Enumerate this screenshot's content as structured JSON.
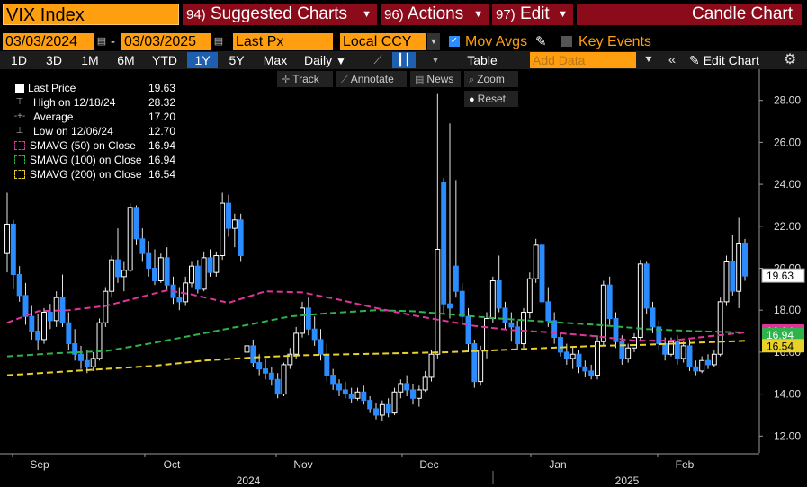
{
  "header": {
    "ticker": "VIX Index",
    "suggested": {
      "num": "94)",
      "label": "Suggested Charts"
    },
    "actions": {
      "num": "96)",
      "label": "Actions"
    },
    "edit": {
      "num": "97)",
      "label": "Edit"
    },
    "chart_type": "Candle Chart"
  },
  "controls": {
    "date_from": "03/03/2024",
    "date_sep": "-",
    "date_to": "03/03/2025",
    "price_field": "Last Px",
    "currency": "Local CCY",
    "mov_avgs_label": "Mov Avgs",
    "key_events_label": "Key Events"
  },
  "periods": [
    "1D",
    "3D",
    "1M",
    "6M",
    "YTD",
    "1Y",
    "5Y",
    "Max"
  ],
  "selected_period": "1Y",
  "frequency": "Daily",
  "table_label": "Table",
  "add_data_placeholder": "Add Data",
  "edit_chart_label": "Edit Chart",
  "chart_tools": {
    "track": "Track",
    "annotate": "Annotate",
    "news": "News",
    "zoom": "Zoom",
    "reset": "Reset"
  },
  "legend": [
    {
      "label": "Last Price",
      "value": "19.63",
      "color": "#ffffff",
      "symbol": "square"
    },
    {
      "label": "High on 12/18/24",
      "value": "28.32",
      "color": "#aaaaaa",
      "symbol": "high"
    },
    {
      "label": "Average",
      "value": "17.20",
      "color": "#aaaaaa",
      "symbol": "avg"
    },
    {
      "label": "Low on 12/06/24",
      "value": "12.70",
      "color": "#aaaaaa",
      "symbol": "low"
    },
    {
      "label": "SMAVG (50)  on Close",
      "value": "16.94",
      "color": "#e0349a",
      "symbol": "dash"
    },
    {
      "label": "SMAVG (100)  on Close",
      "value": "16.94",
      "color": "#2db34a",
      "symbol": "dash"
    },
    {
      "label": "SMAVG (200)  on Close",
      "value": "16.54",
      "color": "#e8d22a",
      "symbol": "dash"
    }
  ],
  "chart_data": {
    "type": "candlestick",
    "y_ticks": [
      "12.00",
      "14.00",
      "16.00",
      "18.00",
      "20.00",
      "22.00",
      "24.00",
      "26.00",
      "28.00"
    ],
    "ylim": [
      11.2,
      29.4
    ],
    "month_labels": [
      "Sep",
      "Oct",
      "Nov",
      "Dec",
      "Jan",
      "Feb"
    ],
    "year_labels": [
      "2024",
      "2025"
    ],
    "price_tags": [
      {
        "value": "19.63",
        "y": 19.63,
        "bg": "#ffffff",
        "fg": "#000000"
      },
      {
        "value": "16.94",
        "y": 16.94,
        "bg": "#e0349a",
        "fg": "#ffffff"
      },
      {
        "value": "16.94",
        "y": 16.94,
        "bg": "#2db34a",
        "fg": "#ffffff"
      },
      {
        "value": "16.54",
        "y": 16.54,
        "bg": "#e8d22a",
        "fg": "#000000"
      }
    ],
    "up_color": "#ffffff",
    "down_color": "#2b8cff",
    "candles": [
      [
        20.7,
        23.6,
        19.8,
        22.1
      ],
      [
        22.1,
        22.3,
        19.0,
        19.7
      ],
      [
        19.7,
        20.1,
        18.4,
        18.7
      ],
      [
        18.7,
        19.3,
        17.3,
        17.7
      ],
      [
        17.7,
        18.2,
        16.6,
        17.0
      ],
      [
        17.0,
        17.8,
        16.1,
        16.6
      ],
      [
        16.6,
        18.1,
        16.4,
        17.9
      ],
      [
        17.9,
        18.3,
        17.1,
        17.5
      ],
      [
        17.5,
        18.9,
        17.2,
        18.6
      ],
      [
        18.6,
        19.7,
        17.2,
        17.4
      ],
      [
        17.4,
        17.9,
        16.1,
        16.4
      ],
      [
        16.4,
        17.1,
        15.6,
        15.9
      ],
      [
        15.9,
        16.3,
        15.2,
        15.6
      ],
      [
        15.6,
        16.1,
        15.0,
        15.3
      ],
      [
        15.3,
        16.0,
        15.1,
        15.7
      ],
      [
        15.7,
        17.6,
        15.6,
        17.4
      ],
      [
        17.4,
        19.1,
        17.2,
        18.9
      ],
      [
        18.9,
        20.6,
        18.6,
        20.4
      ],
      [
        20.4,
        21.9,
        19.3,
        19.6
      ],
      [
        19.6,
        20.3,
        18.9,
        19.9
      ],
      [
        19.9,
        23.1,
        19.8,
        22.9
      ],
      [
        22.9,
        23.0,
        21.1,
        21.4
      ],
      [
        21.4,
        21.9,
        20.3,
        20.7
      ],
      [
        20.7,
        21.3,
        19.6,
        20.0
      ],
      [
        20.0,
        20.9,
        19.2,
        19.4
      ],
      [
        19.4,
        20.7,
        19.3,
        20.5
      ],
      [
        20.5,
        21.0,
        18.9,
        19.2
      ],
      [
        19.2,
        19.6,
        18.3,
        18.6
      ],
      [
        18.6,
        19.1,
        18.0,
        18.4
      ],
      [
        18.4,
        19.6,
        18.2,
        19.3
      ],
      [
        19.3,
        20.3,
        19.1,
        20.1
      ],
      [
        20.1,
        20.4,
        18.8,
        19.0
      ],
      [
        19.0,
        20.8,
        18.9,
        20.5
      ],
      [
        20.5,
        20.9,
        19.6,
        19.8
      ],
      [
        19.8,
        20.8,
        19.6,
        20.6
      ],
      [
        20.6,
        23.6,
        20.4,
        23.1
      ],
      [
        23.1,
        23.5,
        21.5,
        21.9
      ],
      [
        21.9,
        22.6,
        21.0,
        22.3
      ],
      [
        22.3,
        22.6,
        20.3,
        20.6
      ],
      [
        16.0,
        16.7,
        15.7,
        16.3
      ],
      [
        16.3,
        16.6,
        15.3,
        15.5
      ],
      [
        15.5,
        15.9,
        14.9,
        15.2
      ],
      [
        15.2,
        15.7,
        14.7,
        15.0
      ],
      [
        15.0,
        15.3,
        14.4,
        14.7
      ],
      [
        14.7,
        15.0,
        13.8,
        14.0
      ],
      [
        14.0,
        15.5,
        13.9,
        15.4
      ],
      [
        15.4,
        16.2,
        15.2,
        15.9
      ],
      [
        15.9,
        17.2,
        15.7,
        16.9
      ],
      [
        16.9,
        18.4,
        16.7,
        18.1
      ],
      [
        18.1,
        18.6,
        16.8,
        17.1
      ],
      [
        17.1,
        17.7,
        16.3,
        16.6
      ],
      [
        16.6,
        17.1,
        15.6,
        15.9
      ],
      [
        15.9,
        16.4,
        14.6,
        14.9
      ],
      [
        14.9,
        15.2,
        14.2,
        14.5
      ],
      [
        14.5,
        14.7,
        13.9,
        14.2
      ],
      [
        14.2,
        14.6,
        13.8,
        14.0
      ],
      [
        14.0,
        14.3,
        13.6,
        13.8
      ],
      [
        13.8,
        14.3,
        13.7,
        14.1
      ],
      [
        14.1,
        14.4,
        13.5,
        13.7
      ],
      [
        13.7,
        13.9,
        13.1,
        13.3
      ],
      [
        13.3,
        13.6,
        12.8,
        13.0
      ],
      [
        13.0,
        13.7,
        12.7,
        13.5
      ],
      [
        13.5,
        13.8,
        12.9,
        13.1
      ],
      [
        13.1,
        14.3,
        13.0,
        14.1
      ],
      [
        14.1,
        14.7,
        13.8,
        14.5
      ],
      [
        14.5,
        14.9,
        13.9,
        14.2
      ],
      [
        14.2,
        14.5,
        13.5,
        13.8
      ],
      [
        13.8,
        14.4,
        13.4,
        14.2
      ],
      [
        14.2,
        15.1,
        14.1,
        14.8
      ],
      [
        14.8,
        16.1,
        14.6,
        15.9
      ],
      [
        15.9,
        28.3,
        15.7,
        20.9
      ],
      [
        24.1,
        24.3,
        17.8,
        18.3
      ],
      [
        18.3,
        26.9,
        17.6,
        18.1
      ],
      [
        20.1,
        24.2,
        18.6,
        18.9
      ],
      [
        18.9,
        19.3,
        17.4,
        17.7
      ],
      [
        17.7,
        18.1,
        16.0,
        16.4
      ],
      [
        16.4,
        16.6,
        14.3,
        14.6
      ],
      [
        14.6,
        16.3,
        14.4,
        16.1
      ],
      [
        16.1,
        17.9,
        15.7,
        17.6
      ],
      [
        17.6,
        19.6,
        17.4,
        19.4
      ],
      [
        19.4,
        20.6,
        17.9,
        18.1
      ],
      [
        18.1,
        18.4,
        17.1,
        17.4
      ],
      [
        17.4,
        17.9,
        16.5,
        17.2
      ],
      [
        17.2,
        17.5,
        16.1,
        16.4
      ],
      [
        16.4,
        18.1,
        16.2,
        17.9
      ],
      [
        17.9,
        19.8,
        17.6,
        19.5
      ],
      [
        19.5,
        21.4,
        19.3,
        21.1
      ],
      [
        21.1,
        21.3,
        18.1,
        18.4
      ],
      [
        18.4,
        19.1,
        17.2,
        17.5
      ],
      [
        17.5,
        17.9,
        16.4,
        16.7
      ],
      [
        16.7,
        16.9,
        15.8,
        16.0
      ],
      [
        16.0,
        16.4,
        15.4,
        15.7
      ],
      [
        15.7,
        16.3,
        15.2,
        15.9
      ],
      [
        15.9,
        16.1,
        15.0,
        15.3
      ],
      [
        15.3,
        15.6,
        14.8,
        15.1
      ],
      [
        15.1,
        15.4,
        14.7,
        14.9
      ],
      [
        14.9,
        16.8,
        14.7,
        16.5
      ],
      [
        16.5,
        19.4,
        16.3,
        19.2
      ],
      [
        19.2,
        19.6,
        17.3,
        17.6
      ],
      [
        17.6,
        17.9,
        16.2,
        16.5
      ],
      [
        16.5,
        16.8,
        15.4,
        15.7
      ],
      [
        15.7,
        16.4,
        15.5,
        16.2
      ],
      [
        16.2,
        16.9,
        16.0,
        16.7
      ],
      [
        16.7,
        20.4,
        16.5,
        20.2
      ],
      [
        20.2,
        20.3,
        17.8,
        18.1
      ],
      [
        18.1,
        18.4,
        16.9,
        17.2
      ],
      [
        17.2,
        17.5,
        16.1,
        16.4
      ],
      [
        16.4,
        16.7,
        15.6,
        15.9
      ],
      [
        15.9,
        16.7,
        15.8,
        16.5
      ],
      [
        16.5,
        16.8,
        15.4,
        15.7
      ],
      [
        15.7,
        16.5,
        15.5,
        16.3
      ],
      [
        16.3,
        16.6,
        15.1,
        15.3
      ],
      [
        15.3,
        15.6,
        14.9,
        15.1
      ],
      [
        15.1,
        15.8,
        15.0,
        15.6
      ],
      [
        15.6,
        15.9,
        15.2,
        15.4
      ],
      [
        15.4,
        16.1,
        15.3,
        15.9
      ],
      [
        15.9,
        18.6,
        15.8,
        18.4
      ],
      [
        18.4,
        20.6,
        18.2,
        20.3
      ],
      [
        20.3,
        21.6,
        18.7,
        18.9
      ],
      [
        18.9,
        22.4,
        18.1,
        21.2
      ],
      [
        21.2,
        21.4,
        19.4,
        19.63
      ]
    ],
    "ma50": [
      [
        0,
        17.4
      ],
      [
        5,
        17.95
      ],
      [
        10,
        18.0
      ],
      [
        16,
        18.2
      ],
      [
        22,
        18.65
      ],
      [
        26,
        18.95
      ],
      [
        30,
        18.75
      ],
      [
        36,
        18.35
      ],
      [
        42,
        18.9
      ],
      [
        48,
        18.85
      ],
      [
        54,
        18.5
      ],
      [
        60,
        18.1
      ],
      [
        66,
        17.75
      ],
      [
        70,
        17.55
      ],
      [
        76,
        17.25
      ],
      [
        82,
        17.05
      ],
      [
        88,
        16.95
      ],
      [
        96,
        16.75
      ],
      [
        102,
        16.55
      ],
      [
        108,
        16.55
      ],
      [
        114,
        16.75
      ],
      [
        120,
        16.94
      ]
    ],
    "ma100": [
      [
        0,
        15.8
      ],
      [
        8,
        15.95
      ],
      [
        16,
        16.05
      ],
      [
        24,
        16.45
      ],
      [
        32,
        16.9
      ],
      [
        40,
        17.35
      ],
      [
        46,
        17.7
      ],
      [
        52,
        17.85
      ],
      [
        60,
        18.0
      ],
      [
        66,
        17.95
      ],
      [
        72,
        17.8
      ],
      [
        80,
        17.6
      ],
      [
        88,
        17.45
      ],
      [
        96,
        17.3
      ],
      [
        104,
        17.1
      ],
      [
        112,
        17.0
      ],
      [
        120,
        16.94
      ]
    ],
    "ma200": [
      [
        0,
        14.9
      ],
      [
        8,
        15.05
      ],
      [
        16,
        15.2
      ],
      [
        24,
        15.35
      ],
      [
        32,
        15.6
      ],
      [
        40,
        15.75
      ],
      [
        48,
        15.85
      ],
      [
        56,
        15.9
      ],
      [
        64,
        15.95
      ],
      [
        72,
        16.0
      ],
      [
        80,
        16.1
      ],
      [
        88,
        16.2
      ],
      [
        96,
        16.3
      ],
      [
        104,
        16.35
      ],
      [
        112,
        16.45
      ],
      [
        120,
        16.54
      ]
    ]
  }
}
